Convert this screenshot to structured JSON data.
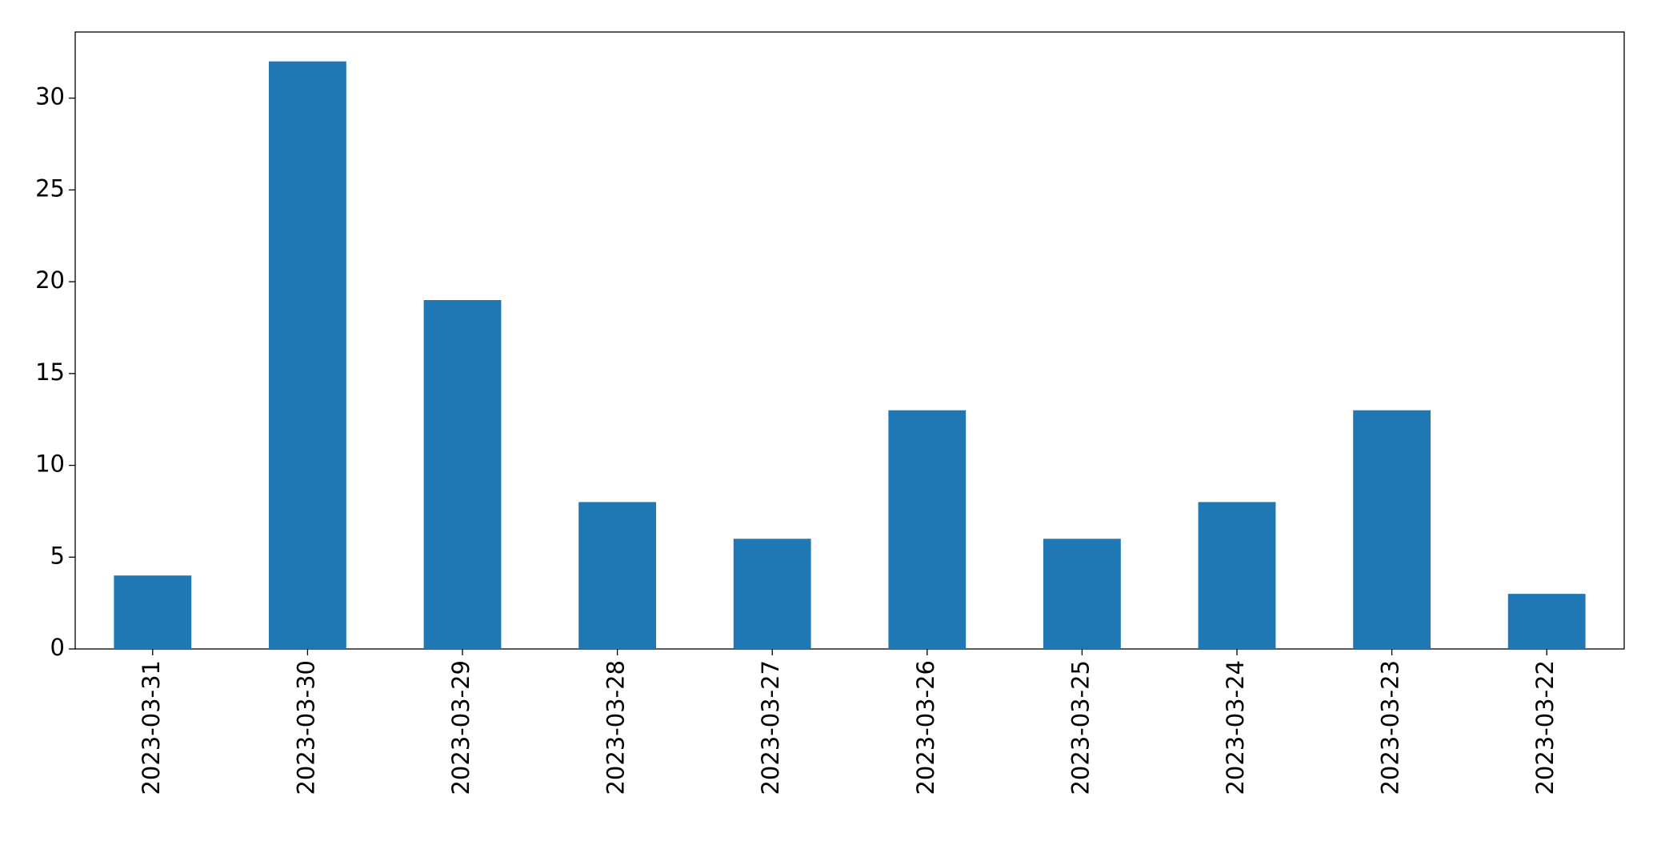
{
  "chart_data": {
    "type": "bar",
    "categories": [
      "2023-03-31",
      "2023-03-30",
      "2023-03-29",
      "2023-03-28",
      "2023-03-27",
      "2023-03-26",
      "2023-03-25",
      "2023-03-24",
      "2023-03-23",
      "2023-03-22"
    ],
    "values": [
      4,
      32,
      19,
      8,
      6,
      13,
      6,
      8,
      13,
      3
    ],
    "color": "#1f77b4",
    "ylim": [
      0,
      33.6
    ],
    "yticks": [
      0,
      5,
      10,
      15,
      20,
      25,
      30
    ],
    "grid": false
  }
}
